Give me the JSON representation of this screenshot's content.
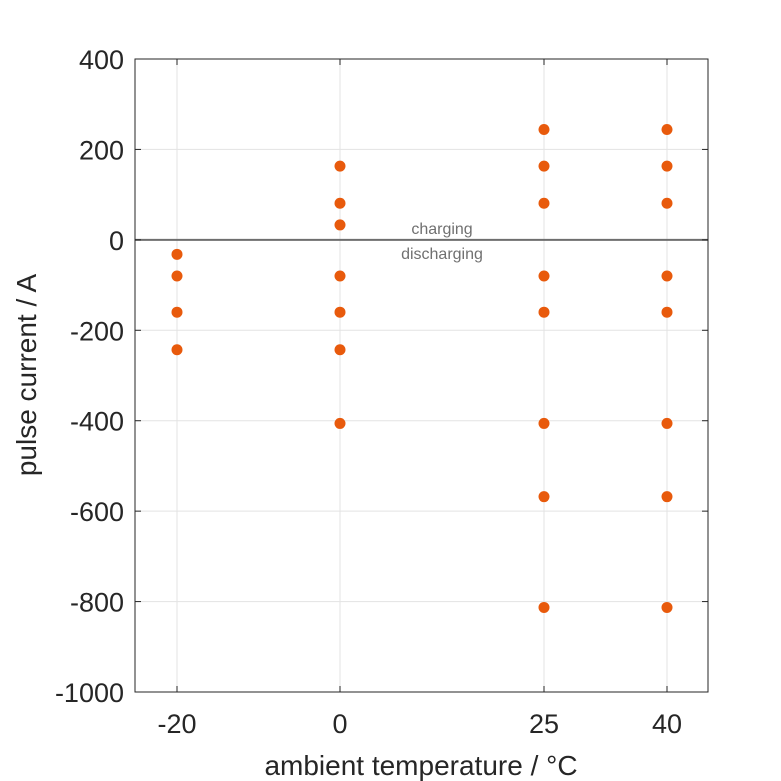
{
  "chart_data": {
    "type": "scatter",
    "title": "",
    "xlabel": "ambient temperature / °C",
    "ylabel": "pulse current / A",
    "x_ticks": [
      -20,
      0,
      25,
      40
    ],
    "y_ticks": [
      400,
      200,
      0,
      -200,
      -400,
      -600,
      -800,
      -1000
    ],
    "xlim": [
      -25,
      45
    ],
    "ylim": [
      -1000,
      400
    ],
    "grid": true,
    "reference_line": {
      "y": 0
    },
    "annotations": {
      "above": "charging",
      "below": "discharging"
    },
    "marker_color": "#E85A0C",
    "series": [
      {
        "points": [
          {
            "x": -20,
            "y": -32
          },
          {
            "x": -20,
            "y": -80
          },
          {
            "x": -20,
            "y": -160
          },
          {
            "x": -20,
            "y": -243
          },
          {
            "x": 0,
            "y": 163
          },
          {
            "x": 0,
            "y": 81
          },
          {
            "x": 0,
            "y": 33
          },
          {
            "x": 0,
            "y": -80
          },
          {
            "x": 0,
            "y": -160
          },
          {
            "x": 0,
            "y": -243
          },
          {
            "x": 0,
            "y": -406
          },
          {
            "x": 25,
            "y": 244
          },
          {
            "x": 25,
            "y": 163
          },
          {
            "x": 25,
            "y": 81
          },
          {
            "x": 25,
            "y": -80
          },
          {
            "x": 25,
            "y": -160
          },
          {
            "x": 25,
            "y": -406
          },
          {
            "x": 25,
            "y": -568
          },
          {
            "x": 25,
            "y": -813
          },
          {
            "x": 40,
            "y": 244
          },
          {
            "x": 40,
            "y": 163
          },
          {
            "x": 40,
            "y": 81
          },
          {
            "x": 40,
            "y": -80
          },
          {
            "x": 40,
            "y": -160
          },
          {
            "x": 40,
            "y": -406
          },
          {
            "x": 40,
            "y": -568
          },
          {
            "x": 40,
            "y": -813
          }
        ]
      }
    ]
  }
}
